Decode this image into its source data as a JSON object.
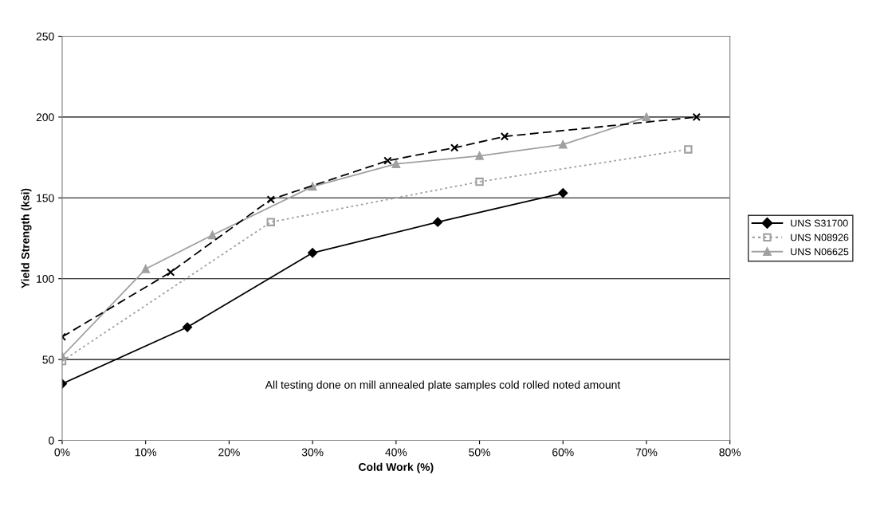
{
  "chart_data": {
    "type": "line",
    "xlabel": "Cold Work (%)",
    "ylabel": "Yield Strength (ksi)",
    "xlim": [
      0,
      80
    ],
    "ylim": [
      0,
      250
    ],
    "xticks": [
      {
        "value": 0,
        "label": "0%"
      },
      {
        "value": 10,
        "label": "10%"
      },
      {
        "value": 20,
        "label": "20%"
      },
      {
        "value": 30,
        "label": "30%"
      },
      {
        "value": 40,
        "label": "40%"
      },
      {
        "value": 50,
        "label": "50%"
      },
      {
        "value": 60,
        "label": "60%"
      },
      {
        "value": 70,
        "label": "70%"
      },
      {
        "value": 80,
        "label": "80%"
      }
    ],
    "yticks": [
      0,
      50,
      100,
      150,
      200,
      250
    ],
    "grid": "y",
    "legend": "right",
    "annotations": [
      "All testing done on mill annealed plate samples cold rolled noted amount"
    ],
    "series": [
      {
        "name": "UNS S31700",
        "color": "#000000",
        "marker": "diamond",
        "line_style": "solid",
        "x": [
          0,
          15,
          30,
          45,
          60
        ],
        "values": [
          35,
          70,
          116,
          135,
          153
        ]
      },
      {
        "name": "UNS N08926",
        "color": "#a0a0a0",
        "marker": "square",
        "line_style": "dotted",
        "x": [
          0,
          25,
          50,
          75
        ],
        "values": [
          49,
          135,
          160,
          180
        ]
      },
      {
        "name": "UNS N06625",
        "color": "#a0a0a0",
        "marker": "triangle",
        "line_style": "solid",
        "x": [
          0,
          10,
          18,
          30,
          40,
          50,
          60,
          70
        ],
        "values": [
          52,
          106,
          127,
          157,
          171,
          176,
          183,
          200
        ]
      },
      {
        "color": "#000000",
        "marker": "cross",
        "line_style": "dashed",
        "x": [
          0,
          13,
          25,
          39,
          47,
          53,
          76
        ],
        "values": [
          64,
          104,
          149,
          173,
          181,
          188,
          200
        ]
      }
    ]
  }
}
